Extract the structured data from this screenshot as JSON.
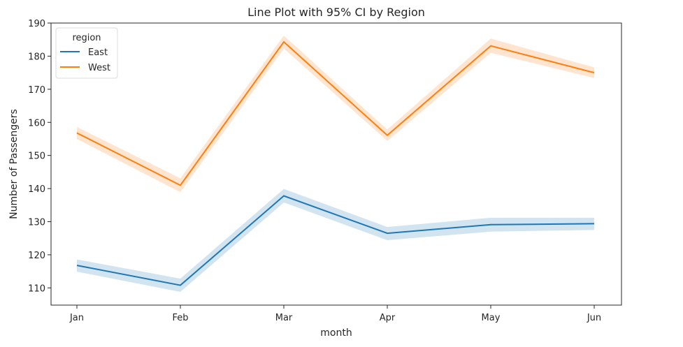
{
  "chart_data": {
    "type": "line",
    "title": "Line Plot with 95% CI by Region",
    "xlabel": "month",
    "ylabel": "Number of Passengers",
    "categories": [
      "Jan",
      "Feb",
      "Mar",
      "Apr",
      "May",
      "Jun"
    ],
    "ylim": [
      104.8,
      190
    ],
    "yticks": [
      110,
      120,
      130,
      140,
      150,
      160,
      170,
      180,
      190
    ],
    "grid": false,
    "legend": {
      "title": "region",
      "placement": "top-left"
    },
    "series": [
      {
        "name": "East",
        "color": "#1f77b4",
        "values": [
          116.8,
          110.8,
          137.8,
          126.5,
          129.1,
          129.4
        ],
        "ci_low": [
          114.9,
          108.8,
          135.8,
          124.4,
          127.0,
          127.5
        ],
        "ci_high": [
          118.6,
          112.8,
          139.9,
          128.4,
          131.2,
          131.2
        ]
      },
      {
        "name": "West",
        "color": "#ff7f0e",
        "values": [
          156.8,
          141.0,
          184.3,
          156.1,
          183.1,
          175.0
        ],
        "ci_low": [
          155.0,
          138.9,
          182.3,
          154.4,
          181.0,
          173.4
        ],
        "ci_high": [
          158.6,
          143.1,
          186.2,
          157.8,
          185.3,
          176.6
        ]
      }
    ]
  }
}
